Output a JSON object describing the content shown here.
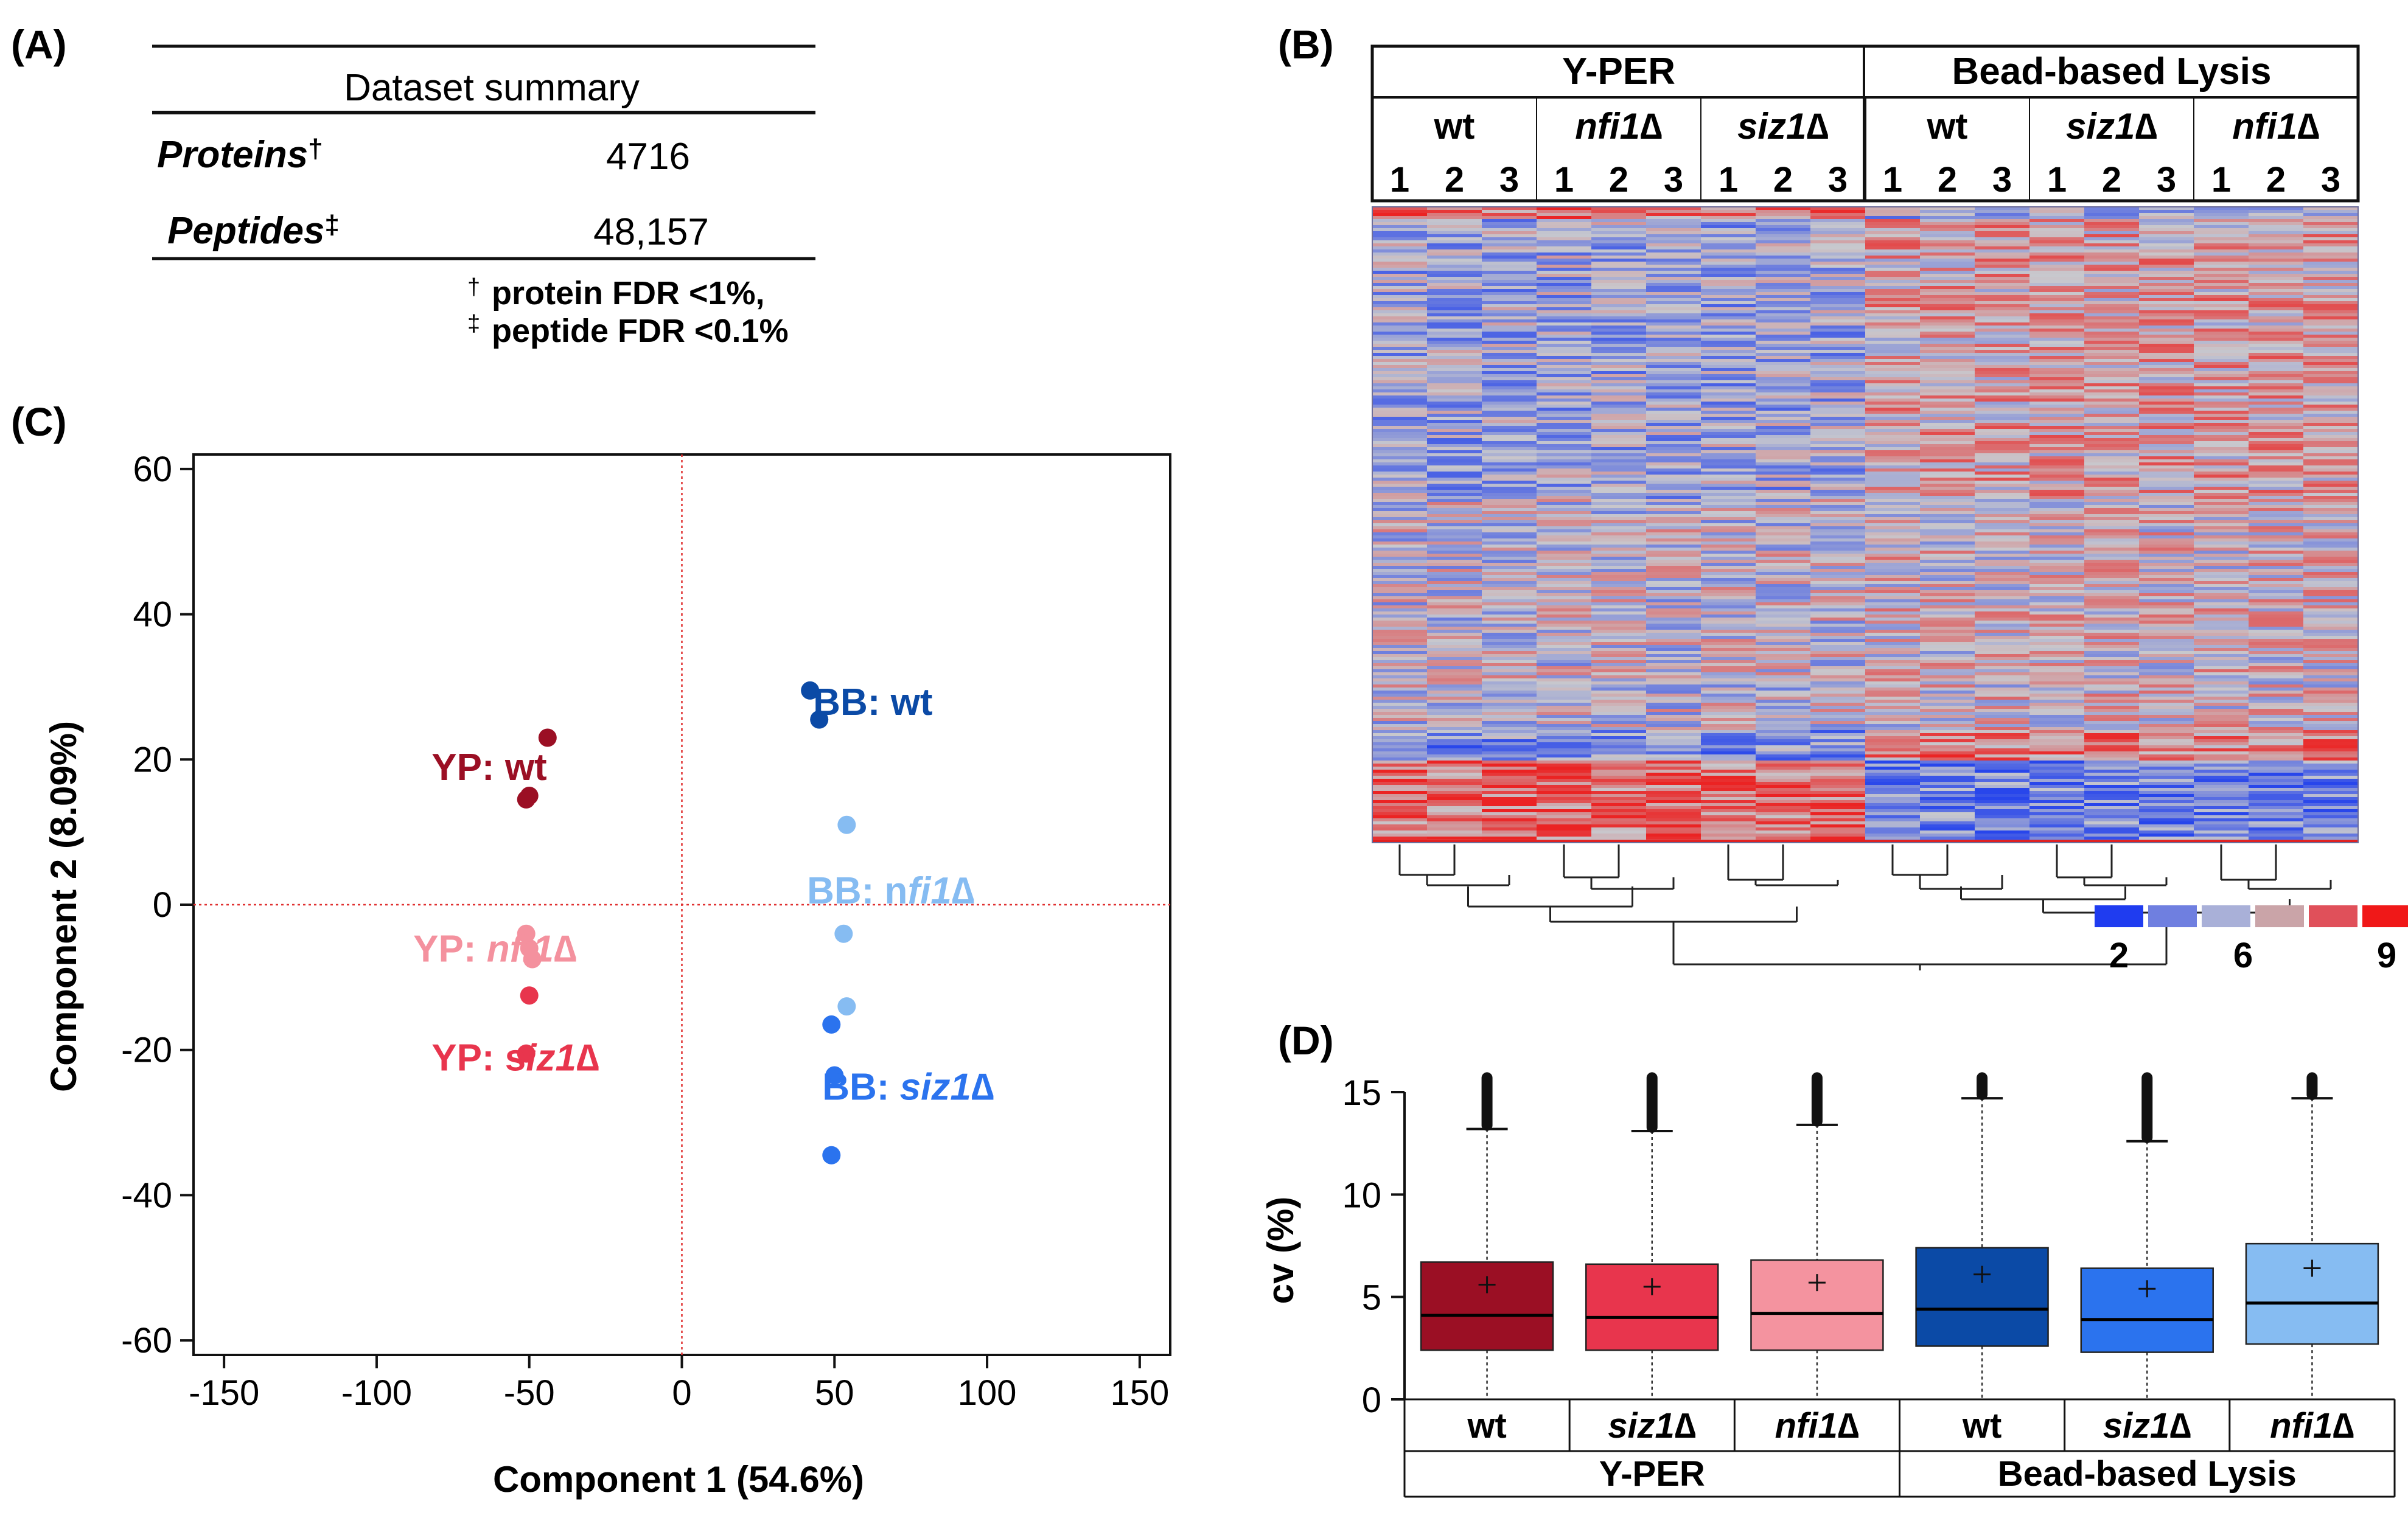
{
  "panels": {
    "A": "(A)",
    "B": "(B)",
    "C": "(C)",
    "D": "(D)"
  },
  "summary": {
    "title": "Dataset summary",
    "rows": [
      {
        "label": "Proteins",
        "mark": "†",
        "value": "4716"
      },
      {
        "label": "Peptides",
        "mark": "‡",
        "value": "48,157"
      }
    ],
    "footnotes": [
      {
        "mark": "†",
        "text": "protein FDR <1%,"
      },
      {
        "mark": "‡",
        "text": "peptide FDR <0.1%"
      }
    ]
  },
  "heatmap": {
    "groups": [
      "Y-PER",
      "Bead-based Lysis"
    ],
    "strains": [
      "wt",
      "nfi1∆",
      "siz1∆",
      "wt",
      "siz1∆",
      "nfi1∆"
    ],
    "strain_italic": [
      false,
      true,
      true,
      false,
      true,
      true
    ],
    "replicates": [
      "1",
      "2",
      "3"
    ],
    "scale_labels": [
      "2",
      "6",
      "9"
    ],
    "scale_colors": [
      "#1f3cf0",
      "#6f7fe0",
      "#a9b0d8",
      "#caa4a8",
      "#e0505a",
      "#f01818"
    ]
  },
  "chart_data": [
    {
      "type": "scatter",
      "title": "",
      "xlabel": "Component 1 (54.6%)",
      "ylabel": "Component 2 (8.09%)",
      "xlim": [
        -160,
        160
      ],
      "ylim": [
        -62,
        62
      ],
      "xticks": [
        -150,
        -100,
        -50,
        0,
        50,
        100,
        150
      ],
      "yticks": [
        -60,
        -40,
        -20,
        0,
        20,
        40,
        60
      ],
      "xtick_labels": [
        "-150",
        "-100",
        "-50",
        "0",
        "50",
        "100",
        "150"
      ],
      "ytick_labels": [
        "-60",
        "-40",
        "-20",
        "0",
        "20",
        "40",
        "60"
      ],
      "series": [
        {
          "name": "YP: wt",
          "color": "#9b0f24",
          "points": [
            [
              -44,
              23
            ],
            [
              -50,
              15
            ],
            [
              -51,
              14.5
            ]
          ]
        },
        {
          "name": "YP: nfi1∆",
          "color": "#f4919e",
          "points": [
            [
              -51,
              -4
            ],
            [
              -50,
              -6
            ],
            [
              -49,
              -7.5
            ]
          ]
        },
        {
          "name": "YP: siz1∆",
          "color": "#e8354d",
          "points": [
            [
              -50,
              -12.5
            ],
            [
              -51,
              -20.5
            ]
          ]
        },
        {
          "name": "BB: wt",
          "color": "#0b4aa6",
          "points": [
            [
              42,
              29.5
            ],
            [
              45,
              25.5
            ]
          ]
        },
        {
          "name": "BB: nfi1∆",
          "color": "#86bcf2",
          "points": [
            [
              54,
              11
            ],
            [
              53,
              -4
            ],
            [
              54,
              -14
            ]
          ]
        },
        {
          "name": "BB: siz1∆",
          "color": "#2b73ee",
          "points": [
            [
              49,
              -16.5
            ],
            [
              50,
              -23.5
            ],
            [
              49,
              -34.5
            ]
          ]
        }
      ],
      "annotations": [
        {
          "prefix": "YP: ",
          "name": "wt",
          "italic": false,
          "color": "#9b0f24"
        },
        {
          "prefix": "YP: ",
          "name": "nfi1∆",
          "italic": true,
          "color": "#f4919e"
        },
        {
          "prefix": "YP: s",
          "name": "iz1∆",
          "italic": true,
          "color": "#e8354d"
        },
        {
          "prefix": "BB: ",
          "name": "wt",
          "italic": false,
          "color": "#0b4aa6"
        },
        {
          "prefix": "BB: n",
          "name": "fi1∆",
          "italic": true,
          "color": "#86bcf2"
        },
        {
          "prefix": "BB: ",
          "name": "siz1∆",
          "italic": true,
          "color": "#2b73ee"
        }
      ],
      "reference_lines": {
        "x": 0,
        "y": 0,
        "color": "#e03030",
        "style": "dotted"
      }
    },
    {
      "type": "box",
      "ylabel": "cv (%)",
      "ylim": [
        0,
        15
      ],
      "yticks": [
        0,
        5,
        10,
        15
      ],
      "ytick_labels": [
        "0",
        "5",
        "10",
        "15"
      ],
      "categories": [
        "wt",
        "siz1∆",
        "nfi1∆",
        "wt",
        "siz1∆",
        "nfi1∆"
      ],
      "category_italic": [
        false,
        true,
        true,
        false,
        true,
        true
      ],
      "groups": [
        {
          "label": "Y-PER",
          "span": 3
        },
        {
          "label": "Bead-based Lysis",
          "span": 3
        }
      ],
      "boxes": [
        {
          "q1": 2.4,
          "median": 4.1,
          "q3": 6.7,
          "mean": 5.6,
          "whisker_high": 13.2,
          "outliers_top": 15.7,
          "color": "#9b0f24"
        },
        {
          "q1": 2.4,
          "median": 4.0,
          "q3": 6.6,
          "mean": 5.5,
          "whisker_high": 13.1,
          "outliers_top": 15.7,
          "color": "#e8354d"
        },
        {
          "q1": 2.4,
          "median": 4.2,
          "q3": 6.8,
          "mean": 5.7,
          "whisker_high": 13.4,
          "outliers_top": 15.7,
          "color": "#f4939f"
        },
        {
          "q1": 2.6,
          "median": 4.4,
          "q3": 7.4,
          "mean": 6.1,
          "whisker_high": 14.7,
          "outliers_top": 15.7,
          "color": "#0b4aa6"
        },
        {
          "q1": 2.3,
          "median": 3.9,
          "q3": 6.4,
          "mean": 5.4,
          "whisker_high": 12.6,
          "outliers_top": 15.7,
          "color": "#2b73ee"
        },
        {
          "q1": 2.7,
          "median": 4.7,
          "q3": 7.6,
          "mean": 6.4,
          "whisker_high": 14.7,
          "outliers_top": 15.7,
          "color": "#86bcf2"
        }
      ]
    }
  ]
}
